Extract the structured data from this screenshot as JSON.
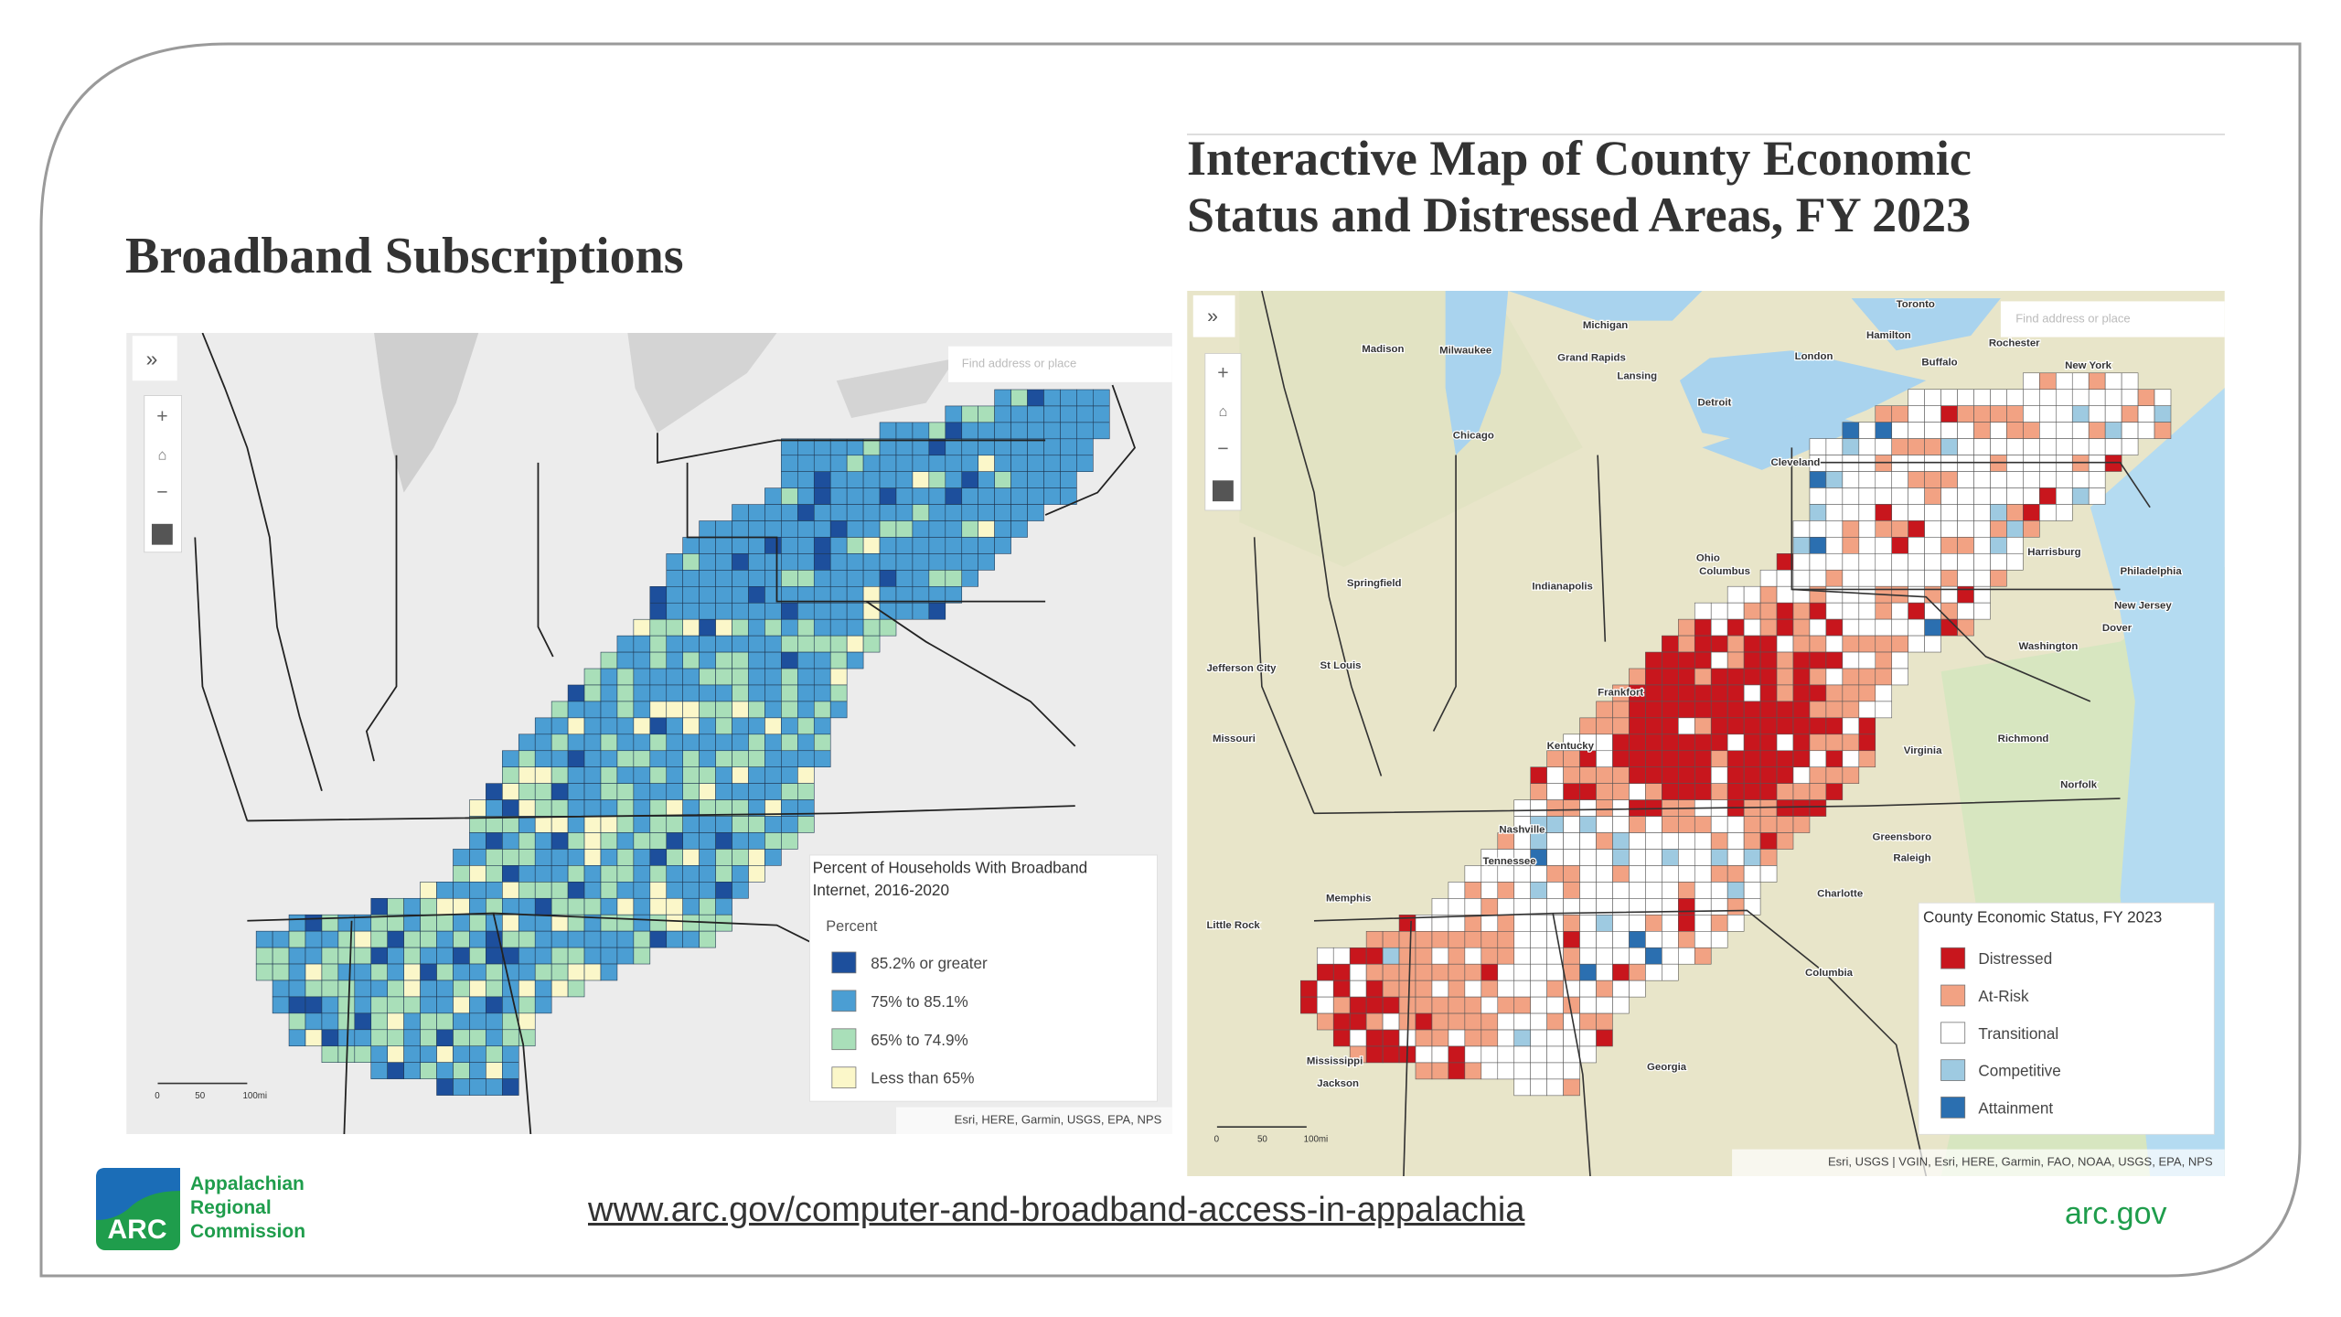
{
  "slide": {
    "left": {
      "title": "Broadband Subscriptions",
      "search_placeholder": "Find address or place",
      "legend": {
        "title_lines": [
          "Percent of Households With Broadband",
          "Internet, 2016-2020"
        ],
        "subtitle": "Percent",
        "items": [
          {
            "label": "85.2% or greater",
            "color": "#1d4f9c"
          },
          {
            "label": "75% to 85.1%",
            "color": "#4b9ed3"
          },
          {
            "label": "65% to 74.9%",
            "color": "#a9dfb9"
          },
          {
            "label": "Less than 65%",
            "color": "#fbf7c9"
          }
        ]
      },
      "scale": [
        "0",
        "50",
        "100mi"
      ],
      "attribution": "Esri, HERE, Garmin, USGS, EPA, NPS"
    },
    "right": {
      "title_lines": [
        "Interactive Map of County Economic",
        "Status and Distressed Areas, FY 2023"
      ],
      "search_placeholder": "Find address or place",
      "legend": {
        "title": "County Economic Status, FY 2023",
        "items": [
          {
            "label": "Distressed",
            "color": "#c8161d"
          },
          {
            "label": "At-Risk",
            "color": "#f2a283"
          },
          {
            "label": "Transitional",
            "color": "#ffffff"
          },
          {
            "label": "Competitive",
            "color": "#9ecae1"
          },
          {
            "label": "Attainment",
            "color": "#2b6fb0"
          }
        ]
      },
      "places": [
        "Toronto",
        "Madison",
        "Milwaukee",
        "Michigan",
        "Grand Rapids",
        "Lansing",
        "London",
        "Hamilton",
        "Buffalo",
        "Rochester",
        "New York",
        "Chicago",
        "Detroit",
        "Cleveland",
        "Ohio",
        "Columbus",
        "Indianapolis",
        "Springfield",
        "St Louis",
        "Jefferson City",
        "Missouri",
        "Frankfort",
        "Kentucky",
        "Nashville",
        "Tennessee",
        "Memphis",
        "Little Rock",
        "Mississippi",
        "Jackson",
        "Georgia",
        "Columbia",
        "Charlotte",
        "Greensboro",
        "Raleigh",
        "Richmond",
        "Norfolk",
        "Virginia",
        "Washington",
        "Dover",
        "Harrisburg",
        "Philadelphia",
        "New Jersey"
      ],
      "scale": [
        "0",
        "50",
        "100mi"
      ],
      "attribution": "Esri, USGS | VGIN, Esri, HERE, Garmin, FAO, NOAA, USGS, EPA, NPS"
    },
    "footer": {
      "logo_mark": "ARC",
      "org_lines": [
        "Appalachian",
        "Regional",
        "Commission"
      ],
      "url": "www.arc.gov/computer-and-broadband-access-in-appalachia",
      "site": "arc.gov"
    }
  }
}
